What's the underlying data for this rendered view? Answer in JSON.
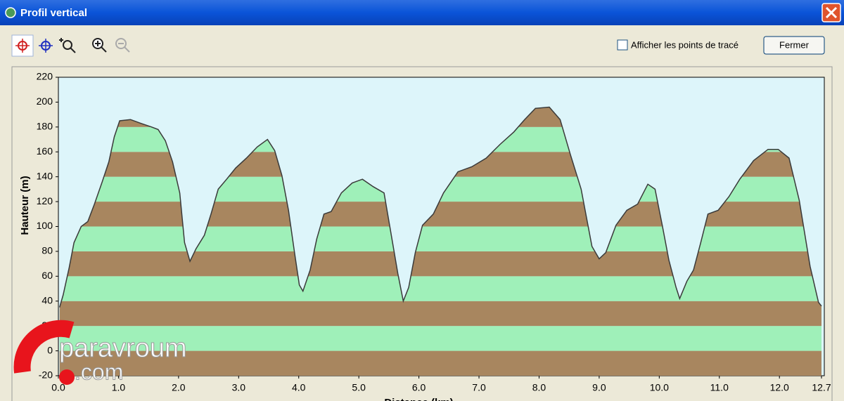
{
  "window": {
    "title": "Profil vertical"
  },
  "toolbar": {
    "checkbox_label": "Afficher les points de tracé",
    "button": "Fermer"
  },
  "watermark": {
    "brand": "paravroum",
    "suffix": ".com"
  },
  "chart_data": {
    "type": "area",
    "ylabel": "Hauteur (m)",
    "xlabel": "Distance (km)",
    "x": [
      0.02,
      0.08,
      0.18,
      0.26,
      0.38,
      0.49,
      0.6,
      0.73,
      0.84,
      0.93,
      1.02,
      1.2,
      1.37,
      1.55,
      1.66,
      1.78,
      1.9,
      2.02,
      2.1,
      2.19,
      2.29,
      2.43,
      2.54,
      2.66,
      2.8,
      2.95,
      3.13,
      3.31,
      3.48,
      3.6,
      3.72,
      3.83,
      3.93,
      4.01,
      4.07,
      4.19,
      4.3,
      4.42,
      4.54,
      4.71,
      4.89,
      5.06,
      5.24,
      5.42,
      5.53,
      5.65,
      5.74,
      5.83,
      5.94,
      6.06,
      6.24,
      6.41,
      6.65,
      6.88,
      7.12,
      7.35,
      7.58,
      7.76,
      7.94,
      8.17,
      8.35,
      8.52,
      8.7,
      8.88,
      9.0,
      9.11,
      9.28,
      9.46,
      9.64,
      9.81,
      9.93,
      10.05,
      10.16,
      10.28,
      10.34,
      10.46,
      10.57,
      10.69,
      10.81,
      10.98,
      11.16,
      11.34,
      11.57,
      11.81,
      11.98,
      12.16,
      12.33,
      12.51,
      12.65,
      12.7
    ],
    "values": [
      35,
      45,
      67,
      87,
      100,
      104,
      118,
      136,
      152,
      172,
      185,
      186,
      183,
      180,
      178,
      169,
      152,
      127,
      87,
      72,
      82,
      93,
      110,
      130,
      138,
      147,
      155,
      164,
      170,
      161,
      141,
      113,
      79,
      53,
      48,
      65,
      90,
      110,
      112,
      127,
      135,
      138,
      132,
      127,
      96,
      62,
      40,
      51,
      79,
      101,
      110,
      127,
      144,
      148,
      155,
      166,
      176,
      186,
      195,
      196,
      186,
      158,
      130,
      84,
      74,
      79,
      101,
      113,
      118,
      134,
      130,
      101,
      73,
      51,
      42,
      56,
      65,
      87,
      110,
      113,
      124,
      138,
      153,
      162,
      162,
      155,
      121,
      68,
      39,
      36
    ],
    "xlim": [
      0,
      12.7
    ],
    "ylim": [
      -20,
      220
    ],
    "xticks": [
      {
        "value": 0,
        "label": "0.0"
      },
      {
        "value": 1,
        "label": "1.0"
      },
      {
        "value": 2,
        "label": "2.0"
      },
      {
        "value": 3,
        "label": "3.0"
      },
      {
        "value": 4,
        "label": "4.0"
      },
      {
        "value": 5,
        "label": "5.0"
      },
      {
        "value": 6,
        "label": "6.0"
      },
      {
        "value": 7,
        "label": "7.0"
      },
      {
        "value": 8,
        "label": "8.0"
      },
      {
        "value": 9,
        "label": "9.0"
      },
      {
        "value": 10,
        "label": "10.0"
      },
      {
        "value": 11,
        "label": "11.0"
      },
      {
        "value": 12,
        "label": "12.0"
      },
      12.7
    ],
    "yticks": [
      -20,
      0,
      20,
      40,
      60,
      80,
      100,
      120,
      140,
      160,
      180,
      200,
      220
    ],
    "band_colors": [
      "#a8865f",
      "#9ff0b9"
    ],
    "line_color": "#3a3a3a",
    "background": "#ddf5fa"
  }
}
